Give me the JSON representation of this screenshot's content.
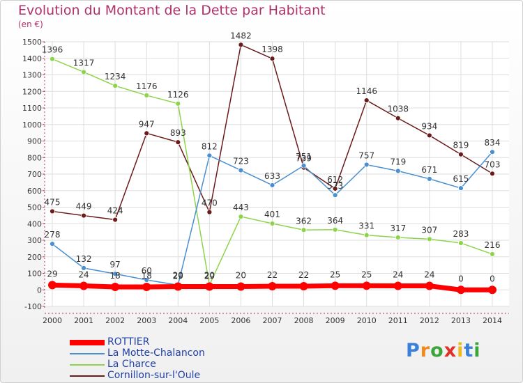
{
  "title": "Evolution du Montant de la Dette par Habitant",
  "unit": "(en €)",
  "logo": "Proxiti",
  "chart_data": {
    "type": "line",
    "title": "Evolution du Montant de la Dette par Habitant",
    "subtitle": "(en €)",
    "x": [
      "2000",
      "2001",
      "2002",
      "2003",
      "2004",
      "2005",
      "2006",
      "2007",
      "2008",
      "2009",
      "2010",
      "2011",
      "2012",
      "2013",
      "2014"
    ],
    "ylim": [
      -100,
      1500
    ],
    "yticks": [
      "-100",
      "0",
      "100",
      "200",
      "300",
      "400",
      "500",
      "600",
      "700",
      "800",
      "900",
      "1000",
      "1100",
      "1200",
      "1300",
      "1400",
      "1500"
    ],
    "grid": true,
    "legend_position": "bottom-left",
    "series": [
      {
        "name": "ROTTIER",
        "color": "#ff0000",
        "values": [
          29,
          24,
          18,
          18,
          20,
          20,
          20,
          22,
          22,
          25,
          25,
          24,
          24,
          0,
          0
        ],
        "labels": [
          "29",
          "24",
          "18",
          "18",
          "20",
          "20",
          "20",
          "22",
          "22",
          "25",
          "25",
          "24",
          "24",
          "0",
          "0"
        ]
      },
      {
        "name": "La Motte-Chalancon",
        "color": "#4a8fd0",
        "values": [
          278,
          132,
          97,
          60,
          29,
          812,
          723,
          633,
          751,
          573,
          757,
          719,
          671,
          615,
          834
        ],
        "labels": [
          "278",
          "132",
          "97",
          "60",
          "29",
          "812",
          "723",
          "633",
          "751",
          "573",
          "757",
          "719",
          "671",
          "615",
          "834"
        ]
      },
      {
        "name": "La Charce",
        "color": "#8ed44a",
        "values": [
          1396,
          1317,
          1234,
          1176,
          1126,
          29,
          443,
          401,
          362,
          364,
          331,
          317,
          307,
          283,
          216
        ],
        "labels": [
          "1396",
          "1317",
          "1234",
          "1176",
          "1126",
          "29",
          "443",
          "401",
          "362",
          "364",
          "331",
          "317",
          "307",
          "283",
          "216"
        ]
      },
      {
        "name": "Cornillon-sur-l'Oule",
        "color": "#6b1a1a",
        "values": [
          475,
          449,
          424,
          947,
          893,
          470,
          1482,
          1398,
          739,
          612,
          1146,
          1038,
          934,
          819,
          703
        ],
        "labels": [
          "475",
          "449",
          "424",
          "947",
          "893",
          "470",
          "1482",
          "1398",
          "739",
          "612",
          "1146",
          "1038",
          "934",
          "819",
          "703"
        ]
      }
    ]
  }
}
